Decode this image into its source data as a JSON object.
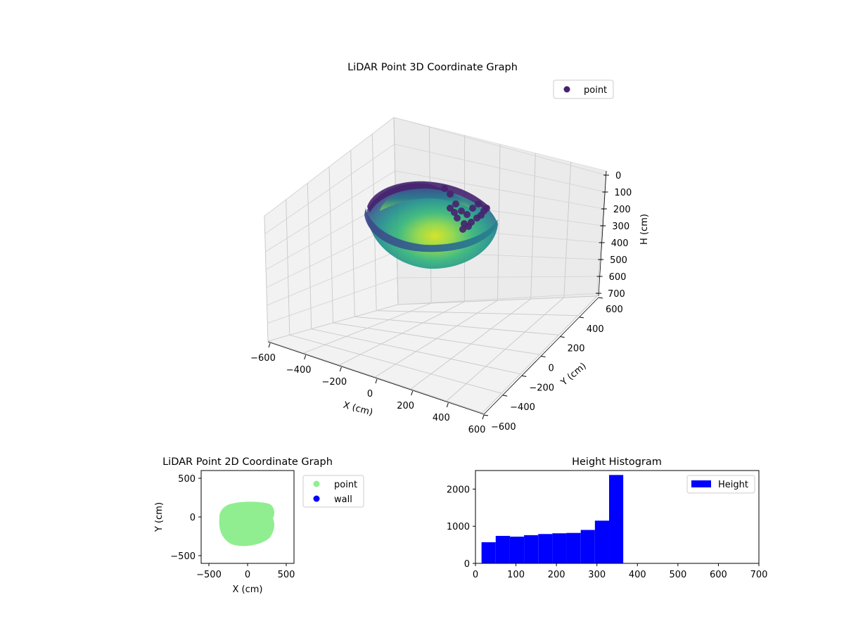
{
  "chart_data": [
    {
      "type": "scatter3d",
      "title": "LiDAR Point 3D Coordinate Graph",
      "xlabel": "X (cm)",
      "ylabel": "Y (cm)",
      "zlabel": "H (cm)",
      "xlim": [
        -600,
        600
      ],
      "ylim": [
        -600,
        600
      ],
      "zlim": [
        0,
        700
      ],
      "z_inverted": true,
      "x_ticks": [
        "−600",
        "−400",
        "−200",
        "0",
        "200",
        "400",
        "600"
      ],
      "y_ticks": [
        "−600",
        "−400",
        "−200",
        "0",
        "200",
        "400",
        "600"
      ],
      "z_ticks": [
        "0",
        "100",
        "200",
        "300",
        "400",
        "500",
        "600",
        "700"
      ],
      "colormap": "viridis",
      "grid": true,
      "legend": {
        "position": "top-right",
        "entries": [
          {
            "name": "point",
            "color": "#46226e"
          }
        ]
      },
      "shape": {
        "description": "bowl-shaped point cloud",
        "x_range": [
          -330,
          310
        ],
        "y_range": [
          -380,
          180
        ],
        "rim_height": [
          0,
          100
        ],
        "bottom_height": 360
      }
    },
    {
      "type": "scatter",
      "title": "LiDAR Point 2D Coordinate Graph",
      "xlabel": "X (cm)",
      "ylabel": "Y (cm)",
      "xlim": [
        -600,
        600
      ],
      "ylim": [
        -600,
        600
      ],
      "x_ticks": [
        "−500",
        "0",
        "500"
      ],
      "y_ticks": [
        "−500",
        "0",
        "500"
      ],
      "legend": {
        "position": "outside-right",
        "entries": [
          {
            "name": "point",
            "color": "#90ee90"
          },
          {
            "name": "wall",
            "color": "#0000ff"
          }
        ]
      },
      "series": [
        {
          "name": "point",
          "color": "#90ee90",
          "x_range": [
            -380,
            340
          ],
          "y_range": [
            -390,
            190
          ]
        },
        {
          "name": "wall",
          "color": "#0000ff",
          "x": [],
          "y": []
        }
      ]
    },
    {
      "type": "bar",
      "title": "Height Histogram",
      "xlim": [
        0,
        700
      ],
      "ylim": [
        0,
        2500
      ],
      "x_ticks": [
        "0",
        "100",
        "200",
        "300",
        "400",
        "500",
        "600",
        "700"
      ],
      "y_ticks": [
        "0",
        "1000",
        "2000"
      ],
      "legend": {
        "position": "top-right",
        "entries": [
          {
            "name": "Height",
            "color": "#0000ff"
          }
        ]
      },
      "series": [
        {
          "name": "Height",
          "color": "#0000ff",
          "bin_edges": [
            15,
            50,
            85,
            120,
            155,
            190,
            225,
            260,
            295,
            330,
            365
          ],
          "values": [
            570,
            740,
            720,
            760,
            790,
            810,
            820,
            900,
            1150,
            2380
          ]
        }
      ]
    }
  ]
}
